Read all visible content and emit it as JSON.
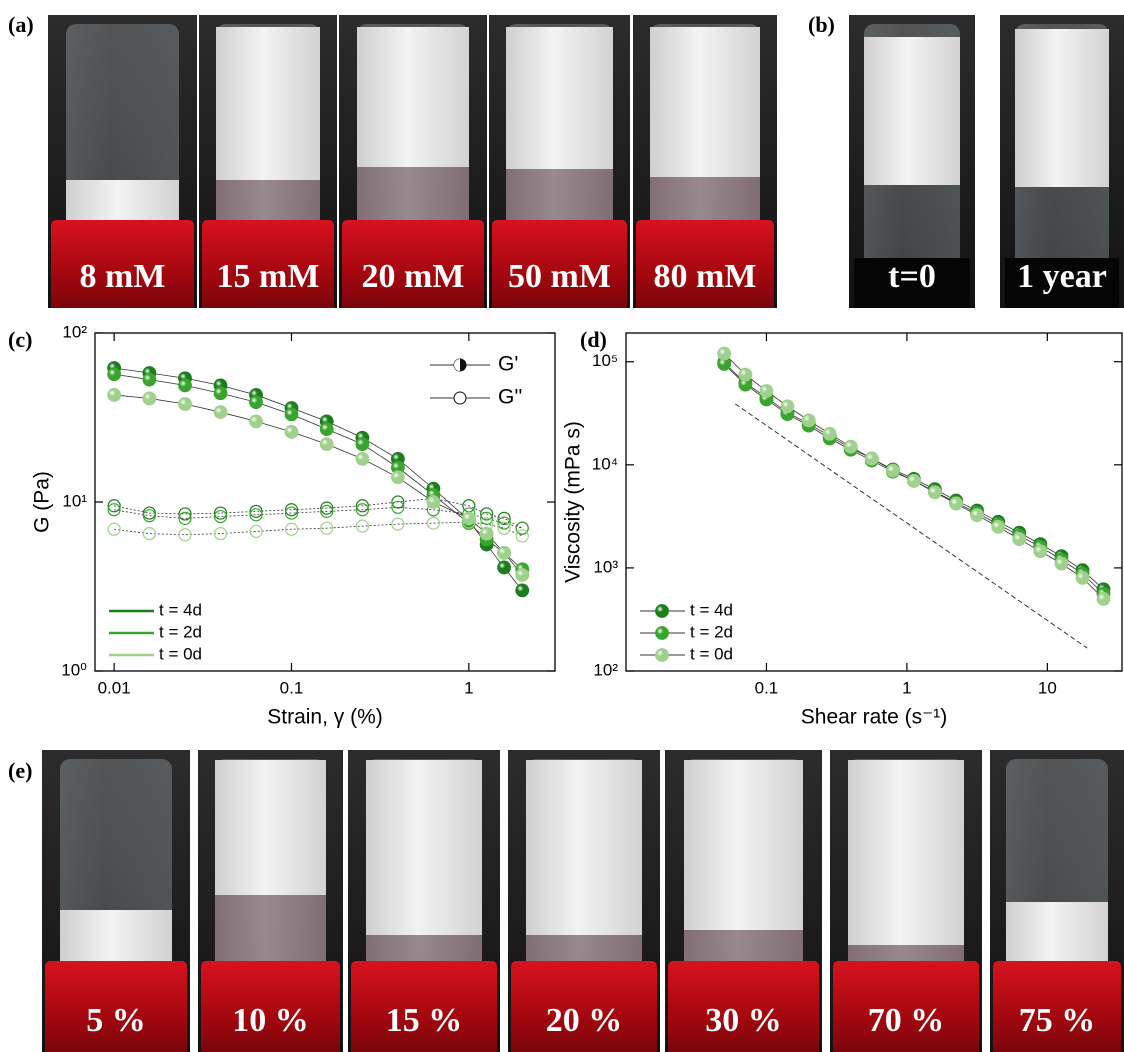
{
  "panels": {
    "a": {
      "label": "(a)",
      "photos": [
        "8 mM",
        "15 mM",
        "20 mM",
        "50 mM",
        "80 mM"
      ]
    },
    "b": {
      "label": "(b)",
      "photos": [
        "t=0",
        "1 year"
      ]
    },
    "c": {
      "label": "(c)"
    },
    "d": {
      "label": "(d)"
    },
    "e": {
      "label": "(e)",
      "photos": [
        "5 %",
        "10 %",
        "15 %",
        "20 %",
        "30 %",
        "70 %",
        "75 %"
      ]
    }
  },
  "chart_data": [
    {
      "type": "scatter",
      "xlabel": "Strain, γ (%)",
      "ylabel": "G (Pa)",
      "log_x": true,
      "log_y": true,
      "xlim": [
        0.0078,
        3.06
      ],
      "ylim": [
        1,
        100
      ],
      "xticks": [
        0.01,
        0.1,
        1
      ],
      "yticks": [
        {
          "value": 1,
          "label": "10⁰"
        },
        {
          "value": 10,
          "label": "10¹"
        },
        {
          "value": 100,
          "label": "10²"
        }
      ],
      "x": [
        0.01,
        0.0158,
        0.0251,
        0.0398,
        0.0631,
        0.1,
        0.158,
        0.251,
        0.398,
        0.631,
        1,
        1.26,
        1.58,
        2
      ],
      "series": [
        {
          "name": "t = 4d",
          "color": "#1b7d1b",
          "values": [
            62,
            58,
            54,
            49,
            43,
            36,
            30,
            24,
            18,
            12,
            7.8,
            5.6,
            4.1,
            3.0
          ],
          "loss_values": [
            9.5,
            8.6,
            8.5,
            8.6,
            8.8,
            9.0,
            9.2,
            9.5,
            10,
            10.5,
            9.5,
            8.5,
            8,
            7
          ]
        },
        {
          "name": "t = 2d",
          "color": "#3aa52e",
          "values": [
            57,
            53,
            49,
            44,
            39,
            33,
            27,
            22,
            16,
            11,
            7.5,
            6,
            5,
            4
          ],
          "loss_values": [
            9,
            8.3,
            8,
            8.2,
            8.4,
            8.6,
            8.8,
            9,
            9.3,
            9,
            8.5,
            8,
            7.5,
            7
          ]
        },
        {
          "name": "t = 0d",
          "color": "#9fd08c",
          "values": [
            43,
            41,
            38,
            34,
            30,
            26,
            22,
            18,
            14,
            10,
            8,
            6.5,
            5,
            3.7
          ],
          "loss_values": [
            6.9,
            6.5,
            6.4,
            6.5,
            6.7,
            6.9,
            7,
            7.2,
            7.4,
            7.5,
            7.6,
            7.4,
            7,
            6.3
          ]
        }
      ],
      "marker_legend": [
        {
          "name": "G'",
          "filled": true
        },
        {
          "name": "G''",
          "filled": false
        }
      ],
      "marker_legend_loc": "upper right",
      "legend": "lower left",
      "legend_markers": false
    },
    {
      "type": "scatter",
      "xlabel": "Shear rate (s⁻¹)",
      "ylabel": "Viscosity (mPa s)",
      "log_x": true,
      "log_y": true,
      "xlim": [
        0.01,
        34
      ],
      "ylim": [
        100,
        190000
      ],
      "xticks": [
        0.1,
        1,
        10
      ],
      "yticks": [
        {
          "value": 100,
          "label": "10²"
        },
        {
          "value": 1000,
          "label": "10³"
        },
        {
          "value": 10000,
          "label": "10⁴"
        },
        {
          "value": 100000,
          "label": "10⁵"
        }
      ],
      "x": [
        0.05,
        0.0708,
        0.1,
        0.141,
        0.2,
        0.282,
        0.398,
        0.562,
        0.794,
        1.12,
        1.58,
        2.24,
        3.16,
        4.47,
        6.31,
        8.91,
        12.6,
        17.8,
        25.1
      ],
      "series": [
        {
          "name": "t = 4d",
          "color": "#1b7d1b",
          "values": [
            98000,
            62000,
            45000,
            32000,
            25000,
            19000,
            14500,
            11500,
            9000,
            7300,
            5800,
            4500,
            3600,
            2800,
            2200,
            1700,
            1300,
            950,
            620
          ]
        },
        {
          "name": "t = 2d",
          "color": "#3aa52e",
          "values": [
            95000,
            60000,
            43000,
            31000,
            24000,
            18000,
            14000,
            11000,
            8600,
            7000,
            5500,
            4300,
            3400,
            2650,
            2050,
            1600,
            1200,
            880,
            560
          ]
        },
        {
          "name": "t = 0d",
          "color": "#9fd08c",
          "values": [
            120000,
            75000,
            52000,
            37000,
            27000,
            20000,
            15000,
            11500,
            8800,
            7000,
            5400,
            4200,
            3250,
            2500,
            1900,
            1450,
            1100,
            800,
            500
          ]
        }
      ],
      "guide": {
        "x": [
          0.06,
          19.2
        ],
        "y": [
          39000,
          167
        ]
      },
      "legend": "lower left",
      "legend_markers": true
    }
  ]
}
